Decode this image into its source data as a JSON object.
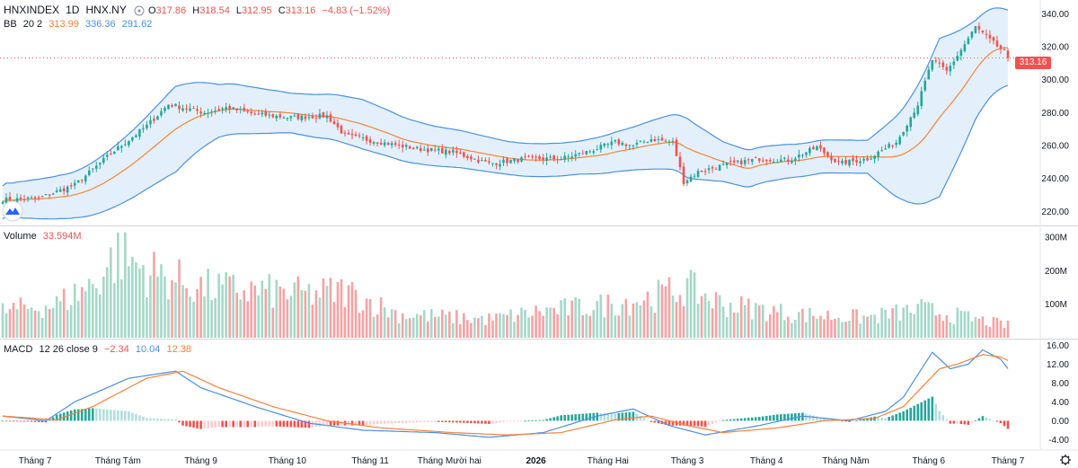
{
  "header": {
    "symbol": "HNXINDEX",
    "interval": "1D",
    "exchange": "HNX.NY",
    "o_label": "O",
    "o": "317.86",
    "h_label": "H",
    "h": "318.54",
    "l_label": "L",
    "l": "312.95",
    "c_label": "C",
    "c": "313.16",
    "change": "−4.83 (−1.52%)"
  },
  "bb_legend": {
    "name": "BB",
    "params": "20 2",
    "basis": "313.99",
    "upper": "336.36",
    "lower": "291.62"
  },
  "volume_legend": {
    "name": "Volume",
    "value": "33.594M"
  },
  "macd_legend": {
    "name": "MACD",
    "params": "12 26 close 9",
    "hist": "−2.34",
    "macd": "10.04",
    "signal": "12.38"
  },
  "last_price": "313.16",
  "colors": {
    "up": "#26a69a",
    "down": "#ef5350",
    "band": "#4a90e2",
    "basis": "#f5823a",
    "vol_up": "#a5d8c8",
    "vol_down": "#f4a3a4"
  },
  "chart_data": {
    "type": "candlestick",
    "price_axis": {
      "ticks": [
        "340.00",
        "320.00",
        "300.00",
        "280.00",
        "260.00",
        "240.00",
        "220.00"
      ],
      "range": [
        212,
        344
      ]
    },
    "volume_axis": {
      "ticks": [
        "300M",
        "200M",
        "100M"
      ],
      "range": [
        0,
        330
      ]
    },
    "macd_axis": {
      "ticks": [
        "16.00",
        "12.00",
        "8.00",
        "4.00",
        "0.00",
        "-4.00"
      ],
      "range": [
        -6,
        17
      ]
    },
    "x_labels": [
      "Tháng 7",
      "Tháng Tám",
      "Tháng 9",
      "Tháng 10",
      "Tháng 11",
      "Tháng Mười hai",
      "2026",
      "Tháng Hai",
      "Tháng 3",
      "Tháng 4",
      "Tháng Năm",
      "Tháng 6",
      "Tháng 7"
    ],
    "x_label_days": [
      9,
      32,
      55,
      79,
      102,
      124,
      148,
      168,
      190,
      212,
      234,
      257,
      279
    ],
    "num_days": 280,
    "price_path": [
      [
        0,
        227
      ],
      [
        10,
        228
      ],
      [
        20,
        236
      ],
      [
        30,
        255
      ],
      [
        40,
        272
      ],
      [
        46,
        285
      ],
      [
        52,
        282
      ],
      [
        56,
        280
      ],
      [
        62,
        283
      ],
      [
        70,
        279
      ],
      [
        80,
        277
      ],
      [
        90,
        278
      ],
      [
        95,
        266
      ],
      [
        105,
        262
      ],
      [
        115,
        258
      ],
      [
        125,
        256
      ],
      [
        135,
        249
      ],
      [
        145,
        252
      ],
      [
        155,
        252
      ],
      [
        162,
        256
      ],
      [
        170,
        262
      ],
      [
        175,
        260
      ],
      [
        180,
        264
      ],
      [
        186,
        262
      ],
      [
        189,
        238
      ],
      [
        193,
        244
      ],
      [
        200,
        248
      ],
      [
        210,
        252
      ],
      [
        218,
        251
      ],
      [
        226,
        259
      ],
      [
        232,
        249
      ],
      [
        240,
        252
      ],
      [
        248,
        262
      ],
      [
        254,
        285
      ],
      [
        258,
        312
      ],
      [
        262,
        305
      ],
      [
        266,
        318
      ],
      [
        270,
        332
      ],
      [
        274,
        324
      ],
      [
        280,
        313.16
      ]
    ],
    "volume_path": [
      [
        0,
        80
      ],
      [
        15,
        100
      ],
      [
        25,
        160
      ],
      [
        32,
        250
      ],
      [
        40,
        200
      ],
      [
        55,
        150
      ],
      [
        70,
        140
      ],
      [
        85,
        130
      ],
      [
        95,
        140
      ],
      [
        110,
        70
      ],
      [
        135,
        55
      ],
      [
        150,
        80
      ],
      [
        165,
        95
      ],
      [
        180,
        120
      ],
      [
        190,
        150
      ],
      [
        200,
        100
      ],
      [
        220,
        70
      ],
      [
        240,
        60
      ],
      [
        255,
        85
      ],
      [
        265,
        65
      ],
      [
        280,
        35
      ]
    ],
    "macd_path": [
      [
        0,
        1
      ],
      [
        12,
        0
      ],
      [
        20,
        4
      ],
      [
        35,
        9
      ],
      [
        48,
        10.5
      ],
      [
        55,
        7
      ],
      [
        70,
        3
      ],
      [
        85,
        -0.5
      ],
      [
        100,
        -2
      ],
      [
        120,
        -2.5
      ],
      [
        135,
        -3.5
      ],
      [
        150,
        -2.5
      ],
      [
        165,
        1
      ],
      [
        175,
        2.5
      ],
      [
        185,
        -1
      ],
      [
        195,
        -3
      ],
      [
        210,
        -1
      ],
      [
        222,
        1
      ],
      [
        235,
        0
      ],
      [
        245,
        2
      ],
      [
        250,
        5
      ],
      [
        258,
        14.5
      ],
      [
        263,
        11
      ],
      [
        268,
        12
      ],
      [
        272,
        15
      ],
      [
        277,
        13
      ],
      [
        280,
        10.04
      ]
    ],
    "signal_path": [
      [
        0,
        1
      ],
      [
        15,
        0.2
      ],
      [
        25,
        3
      ],
      [
        40,
        9
      ],
      [
        50,
        10.5
      ],
      [
        60,
        7
      ],
      [
        75,
        3
      ],
      [
        90,
        0
      ],
      [
        105,
        -1.5
      ],
      [
        125,
        -2.5
      ],
      [
        140,
        -3
      ],
      [
        155,
        -2.5
      ],
      [
        170,
        0.2
      ],
      [
        180,
        1
      ],
      [
        190,
        -1
      ],
      [
        200,
        -2.5
      ],
      [
        215,
        -1.5
      ],
      [
        228,
        0
      ],
      [
        242,
        0.5
      ],
      [
        250,
        3
      ],
      [
        260,
        11
      ],
      [
        265,
        12
      ],
      [
        272,
        14
      ],
      [
        277,
        13.5
      ],
      [
        280,
        12.38
      ]
    ],
    "bb_width": [
      [
        0,
        10
      ],
      [
        20,
        14
      ],
      [
        40,
        22
      ],
      [
        48,
        26
      ],
      [
        60,
        16
      ],
      [
        80,
        12
      ],
      [
        100,
        15
      ],
      [
        120,
        12
      ],
      [
        140,
        10
      ],
      [
        160,
        10
      ],
      [
        175,
        13
      ],
      [
        190,
        18
      ],
      [
        200,
        12
      ],
      [
        220,
        10
      ],
      [
        240,
        10
      ],
      [
        250,
        28
      ],
      [
        260,
        48
      ],
      [
        270,
        30
      ],
      [
        280,
        22
      ]
    ]
  }
}
